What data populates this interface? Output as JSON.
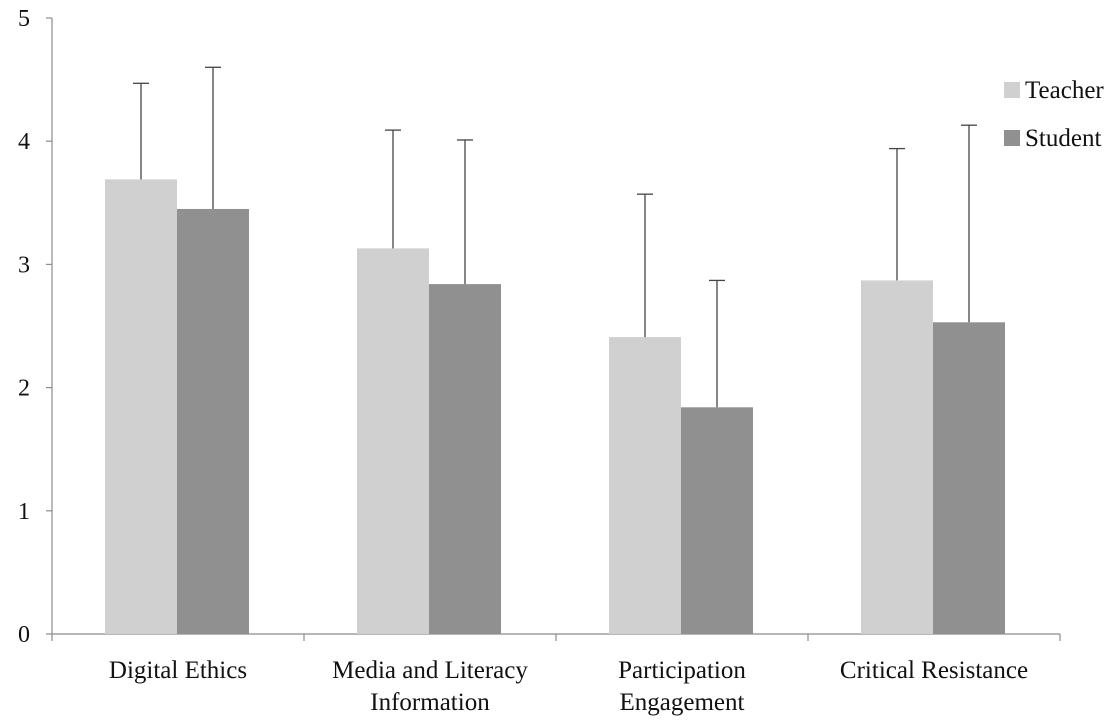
{
  "chart_data": {
    "type": "bar",
    "title": "",
    "xlabel": "",
    "ylabel": "",
    "ylim": [
      0,
      5
    ],
    "yticks": [
      "0",
      "1",
      "2",
      "3",
      "4",
      "5"
    ],
    "grid": false,
    "legend_position": "right",
    "categories": [
      [
        "Digital Ethics"
      ],
      [
        "Media and Literacy",
        "Information"
      ],
      [
        "Participation",
        "Engagement"
      ],
      [
        "Critical Resistance"
      ]
    ],
    "series": [
      {
        "name": "Teacher",
        "color": "#d0d0d0",
        "values": [
          3.69,
          3.13,
          2.41,
          2.87
        ],
        "errors": [
          0.78,
          0.96,
          1.16,
          1.07
        ]
      },
      {
        "name": "Student",
        "color": "#909090",
        "values": [
          3.45,
          2.84,
          1.84,
          2.53
        ],
        "errors": [
          1.15,
          1.17,
          1.03,
          1.6
        ]
      }
    ]
  }
}
